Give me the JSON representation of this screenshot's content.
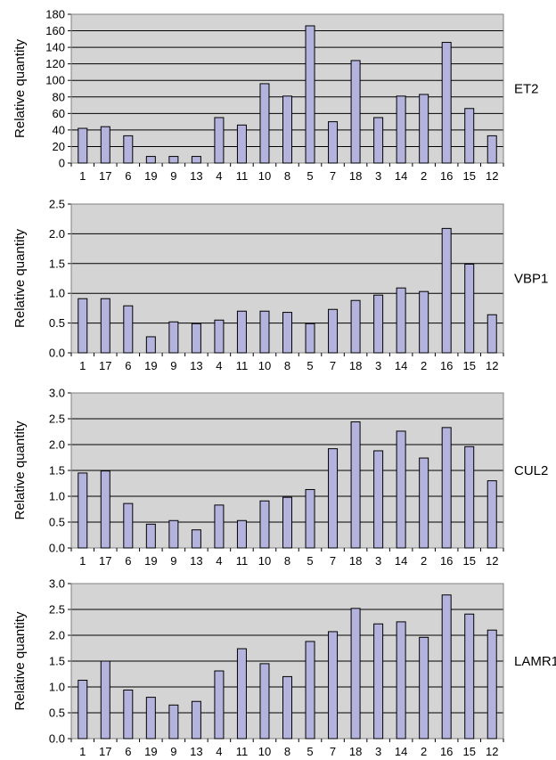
{
  "chart_data": [
    {
      "type": "bar",
      "gene": "ET2",
      "ylabel": "Relative quantity",
      "categories": [
        "1",
        "17",
        "6",
        "19",
        "9",
        "13",
        "4",
        "11",
        "10",
        "8",
        "5",
        "7",
        "18",
        "3",
        "14",
        "2",
        "16",
        "15",
        "12"
      ],
      "values": [
        42,
        44,
        33,
        8,
        8,
        8,
        55,
        46,
        96,
        81,
        166,
        50,
        124,
        55,
        81,
        83,
        146,
        66,
        33
      ],
      "ylim": [
        0,
        180
      ],
      "yticks": [
        "0",
        "20",
        "40",
        "60",
        "80",
        "100",
        "120",
        "140",
        "160",
        "180"
      ],
      "grid": true,
      "bar_color": "#b3b3dd",
      "plot_background": "#d4d4d4"
    },
    {
      "type": "bar",
      "gene": "VBP1",
      "ylabel": "Relative quantity",
      "categories": [
        "1",
        "17",
        "6",
        "19",
        "9",
        "13",
        "4",
        "11",
        "10",
        "8",
        "5",
        "7",
        "18",
        "3",
        "14",
        "2",
        "16",
        "15",
        "12"
      ],
      "values": [
        0.91,
        0.91,
        0.79,
        0.27,
        0.52,
        0.49,
        0.55,
        0.7,
        0.7,
        0.68,
        0.49,
        0.73,
        0.88,
        0.97,
        1.09,
        1.03,
        2.09,
        1.49,
        0.64
      ],
      "ylim": [
        0,
        2.5
      ],
      "yticks": [
        "0.0",
        "0.5",
        "1.0",
        "1.5",
        "2.0",
        "2.5"
      ],
      "grid": true,
      "bar_color": "#b3b3dd",
      "plot_background": "#d4d4d4"
    },
    {
      "type": "bar",
      "gene": "CUL2",
      "ylabel": "Relative quantity",
      "categories": [
        "1",
        "17",
        "6",
        "19",
        "9",
        "13",
        "4",
        "11",
        "10",
        "8",
        "5",
        "7",
        "18",
        "3",
        "14",
        "2",
        "16",
        "15",
        "12"
      ],
      "values": [
        1.45,
        1.49,
        0.86,
        0.46,
        0.53,
        0.35,
        0.83,
        0.53,
        0.91,
        0.98,
        1.13,
        1.92,
        2.44,
        1.88,
        2.26,
        1.74,
        2.33,
        1.96,
        1.3
      ],
      "ylim": [
        0,
        3.0
      ],
      "yticks": [
        "0.0",
        "0.5",
        "1.0",
        "1.5",
        "2.0",
        "2.5",
        "3.0"
      ],
      "grid": true,
      "bar_color": "#b3b3dd",
      "plot_background": "#d4d4d4"
    },
    {
      "type": "bar",
      "gene": "LAMR1",
      "ylabel": "Relative quantity",
      "categories": [
        "1",
        "17",
        "6",
        "19",
        "9",
        "13",
        "4",
        "11",
        "10",
        "8",
        "5",
        "7",
        "18",
        "3",
        "14",
        "2",
        "16",
        "15",
        "12"
      ],
      "values": [
        1.13,
        1.5,
        0.94,
        0.8,
        0.65,
        0.72,
        1.31,
        1.74,
        1.45,
        1.2,
        1.88,
        2.07,
        2.52,
        2.22,
        2.26,
        1.96,
        2.78,
        2.41,
        2.1
      ],
      "ylim": [
        0,
        3.0
      ],
      "yticks": [
        "0.0",
        "0.5",
        "1.0",
        "1.5",
        "2.0",
        "2.5",
        "3.0"
      ],
      "grid": true,
      "bar_color": "#b3b3dd",
      "plot_background": "#d4d4d4"
    }
  ]
}
